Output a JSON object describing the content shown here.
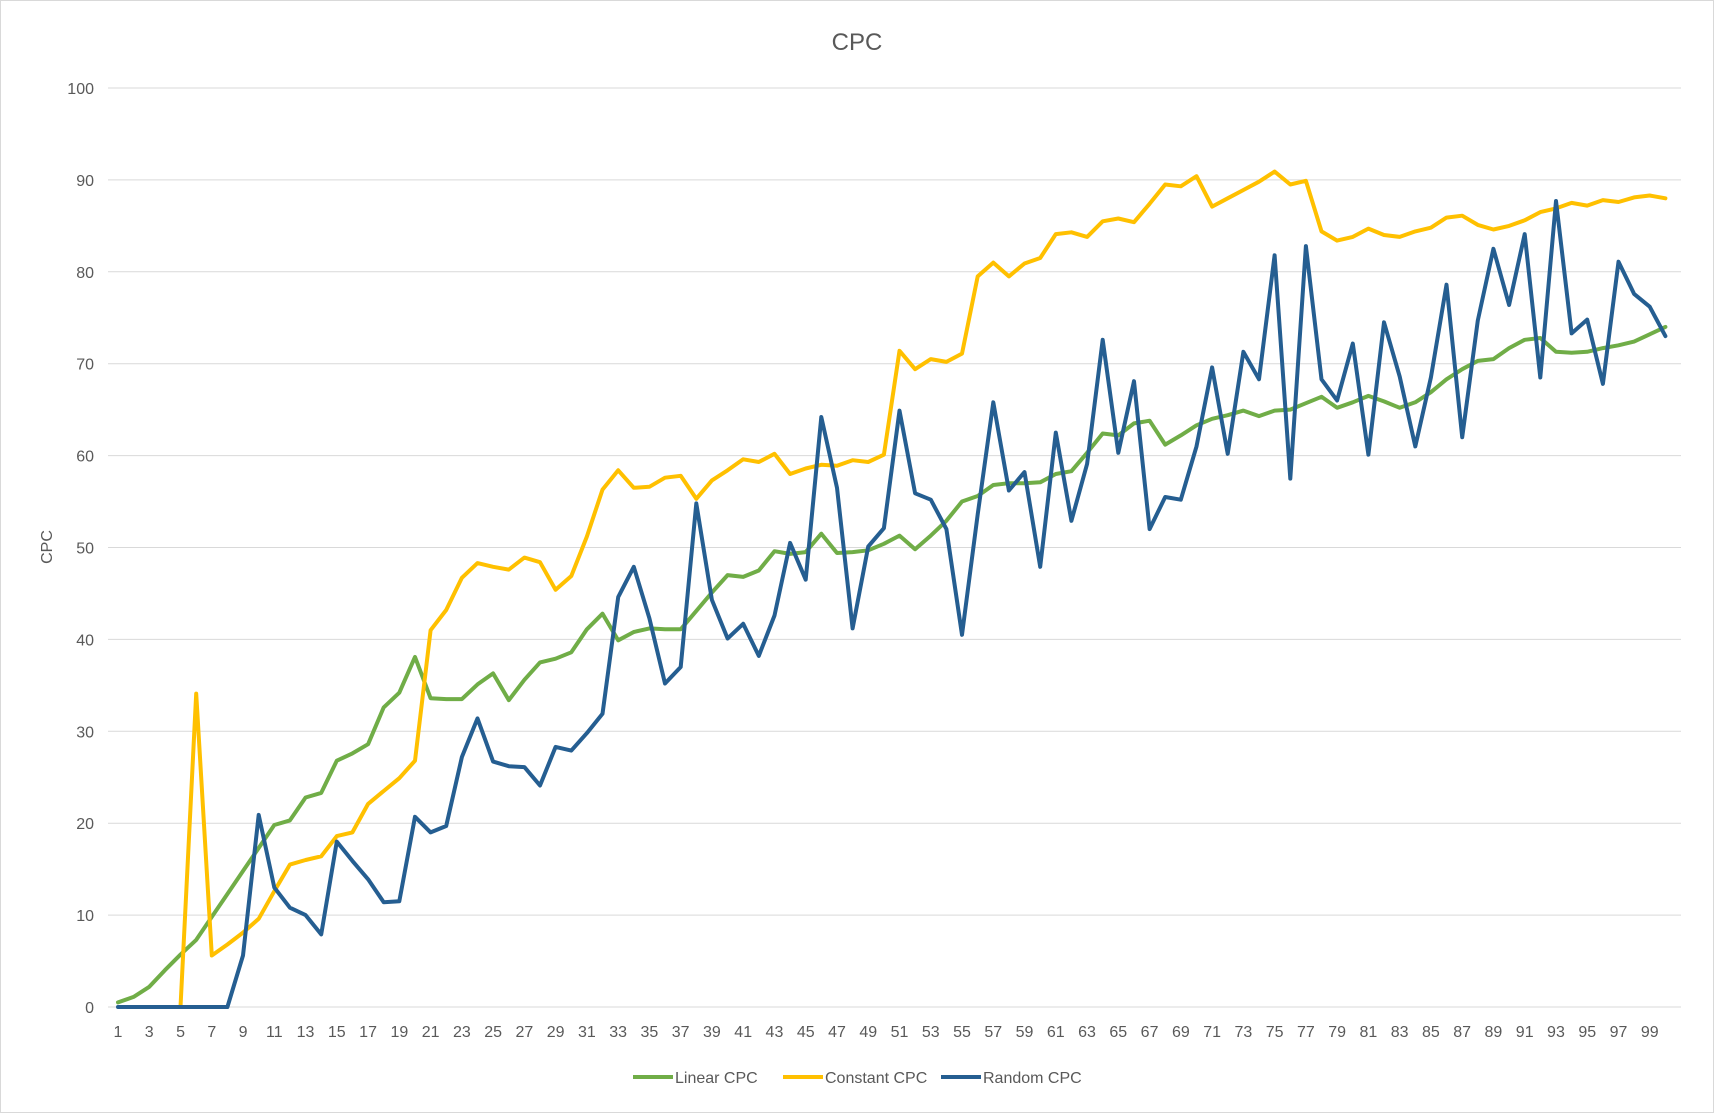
{
  "chart_data": {
    "type": "line",
    "title": "CPC",
    "xlabel": "",
    "ylabel": "CPC",
    "ylim": [
      0,
      100
    ],
    "yticks": [
      0,
      10,
      20,
      30,
      40,
      50,
      60,
      70,
      80,
      90,
      100
    ],
    "x": [
      1,
      2,
      3,
      4,
      5,
      6,
      7,
      8,
      9,
      10,
      11,
      12,
      13,
      14,
      15,
      16,
      17,
      18,
      19,
      20,
      21,
      22,
      23,
      24,
      25,
      26,
      27,
      28,
      29,
      30,
      31,
      32,
      33,
      34,
      35,
      36,
      37,
      38,
      39,
      40,
      41,
      42,
      43,
      44,
      45,
      46,
      47,
      48,
      49,
      50,
      51,
      52,
      53,
      54,
      55,
      56,
      57,
      58,
      59,
      60,
      61,
      62,
      63,
      64,
      65,
      66,
      67,
      68,
      69,
      70,
      71,
      72,
      73,
      74,
      75,
      76,
      77,
      78,
      79,
      80,
      81,
      82,
      83,
      84,
      85,
      86,
      87,
      88,
      89,
      90,
      91,
      92,
      93,
      94,
      95,
      96,
      97,
      98,
      99,
      100
    ],
    "xtick_labels": [
      1,
      3,
      5,
      7,
      9,
      11,
      13,
      15,
      17,
      19,
      21,
      23,
      25,
      27,
      29,
      31,
      33,
      35,
      37,
      39,
      41,
      43,
      45,
      47,
      49,
      51,
      53,
      55,
      57,
      59,
      61,
      63,
      65,
      67,
      69,
      71,
      73,
      75,
      77,
      79,
      81,
      83,
      85,
      87,
      89,
      91,
      93,
      95,
      97,
      99
    ],
    "grid": true,
    "legend_position": "bottom",
    "series": [
      {
        "name": "Linear CPC",
        "color": "#70ad47",
        "values": [
          0.5,
          1.1,
          2.2,
          4.0,
          5.7,
          7.3,
          9.8,
          12.3,
          14.8,
          17.3,
          19.8,
          20.3,
          22.8,
          23.3,
          26.8,
          27.6,
          28.6,
          32.6,
          34.2,
          38.1,
          33.6,
          33.5,
          33.5,
          35.1,
          36.3,
          33.4,
          35.6,
          37.5,
          37.9,
          38.6,
          41.1,
          42.8,
          39.9,
          40.8,
          41.2,
          41.1,
          41.1,
          43.1,
          45.1,
          47.0,
          46.8,
          47.5,
          49.6,
          49.3,
          49.5,
          51.5,
          49.4,
          49.5,
          49.7,
          50.4,
          51.3,
          49.8,
          51.3,
          52.9,
          55.0,
          55.6,
          56.8,
          57.0,
          57.0,
          57.1,
          58.0,
          58.3,
          60.3,
          62.4,
          62.2,
          63.5,
          63.8,
          61.2,
          62.2,
          63.3,
          64.0,
          64.4,
          64.9,
          64.3,
          64.9,
          65.0,
          65.7,
          66.4,
          65.2,
          65.8,
          66.5,
          65.9,
          65.2,
          65.8,
          66.9,
          68.3,
          69.4,
          70.3,
          70.5,
          71.7,
          72.6,
          72.8,
          71.3,
          71.2,
          71.3,
          71.7,
          72.0,
          72.4,
          73.2,
          74.0
        ]
      },
      {
        "name": "Constant CPC",
        "color": "#ffc000",
        "values": [
          null,
          null,
          null,
          null,
          0,
          34.1,
          5.6,
          6.8,
          8.1,
          9.6,
          12.6,
          15.5,
          16.0,
          16.4,
          18.6,
          19.0,
          22.1,
          23.5,
          24.9,
          26.8,
          41.0,
          43.2,
          46.7,
          48.3,
          47.9,
          47.6,
          48.9,
          48.4,
          45.4,
          46.9,
          51.2,
          56.3,
          58.4,
          56.5,
          56.6,
          57.6,
          57.8,
          55.3,
          57.3,
          58.4,
          59.6,
          59.3,
          60.2,
          58.0,
          58.6,
          59.0,
          58.9,
          59.5,
          59.3,
          60.1,
          71.4,
          69.4,
          70.5,
          70.2,
          71.1,
          79.5,
          81.0,
          79.5,
          80.9,
          81.5,
          84.1,
          84.3,
          83.8,
          85.5,
          85.8,
          85.4,
          87.4,
          89.5,
          89.3,
          90.4,
          87.1,
          88.0,
          88.9,
          89.8,
          90.9,
          89.5,
          89.9,
          84.4,
          83.4,
          83.8,
          84.7,
          84.0,
          83.8,
          84.4,
          84.8,
          85.9,
          86.1,
          85.1,
          84.6,
          85.0,
          85.6,
          86.5,
          86.9,
          87.5,
          87.2,
          87.8,
          87.6,
          88.1,
          88.3,
          88.0
        ]
      },
      {
        "name": "Random CPC",
        "color": "#255e91",
        "values": [
          0,
          0,
          0,
          0,
          0,
          0,
          0,
          0,
          5.6,
          20.9,
          13.0,
          10.8,
          10.0,
          7.9,
          18.0,
          15.9,
          13.9,
          11.4,
          11.5,
          20.7,
          19.0,
          19.7,
          27.2,
          31.4,
          26.7,
          26.2,
          26.1,
          24.1,
          28.3,
          27.9,
          29.8,
          31.9,
          44.6,
          47.9,
          42.3,
          35.2,
          37.0,
          54.8,
          44.3,
          40.1,
          41.7,
          38.2,
          42.6,
          50.5,
          46.5,
          64.2,
          56.5,
          41.2,
          50.1,
          52.1,
          64.9,
          55.9,
          55.2,
          52.0,
          40.5,
          53.6,
          65.8,
          56.2,
          58.2,
          47.9,
          62.5,
          52.9,
          59.1,
          72.6,
          60.3,
          68.1,
          52.0,
          55.5,
          55.2,
          61.0,
          69.6,
          60.2,
          71.3,
          68.3,
          81.8,
          57.5,
          82.8,
          68.3,
          66.0,
          72.2,
          60.1,
          74.5,
          68.6,
          61.0,
          68.5,
          78.6,
          62.0,
          74.7,
          82.5,
          76.4,
          84.1,
          68.5,
          87.7,
          73.3,
          74.8,
          67.8,
          81.1,
          77.6,
          76.2,
          73.0
        ]
      }
    ]
  }
}
